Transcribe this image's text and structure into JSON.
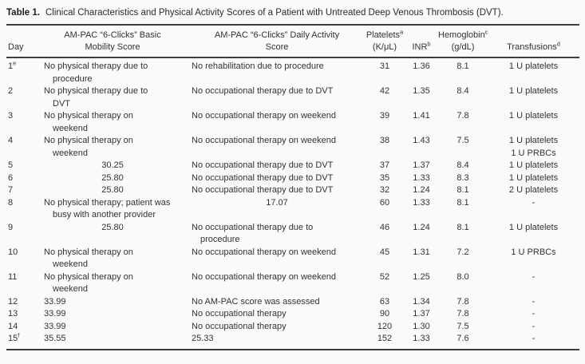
{
  "title": {
    "label": "Table 1.",
    "text": "Clinical Characteristics and Physical Activity Scores of a Patient with Untreated Deep Venous Thrombosis (DVT)."
  },
  "header": {
    "day": "Day",
    "mobility": [
      "AM-PAC “6-Clicks” Basic",
      "Mobility Score"
    ],
    "activity": [
      "AM-PAC “6-Clicks” Daily Activity",
      "Score"
    ],
    "platelets": {
      "main": "Platelets",
      "sup": "a",
      "sub": "(K/μL)"
    },
    "inr": {
      "main": "INR",
      "sup": "b"
    },
    "hgb": {
      "main": "Hemoglobin",
      "sup": "c",
      "sub": "(g/dL)"
    },
    "transfusions": {
      "main": "Transfusions",
      "sup": "d"
    }
  },
  "rows": [
    {
      "day": "1",
      "day_sup": "e",
      "mobility": {
        "lines": [
          "No physical therapy due to",
          "procedure"
        ],
        "align": "left"
      },
      "activity": {
        "lines": [
          "No rehabilitation due to procedure"
        ],
        "align": "left"
      },
      "platelets": "31",
      "inr": "1.36",
      "hgb": "8.1",
      "transfusions": [
        "1 U platelets"
      ]
    },
    {
      "day": "2",
      "day_sup": "",
      "mobility": {
        "lines": [
          "No physical therapy due to",
          "DVT"
        ],
        "align": "left"
      },
      "activity": {
        "lines": [
          "No occupational therapy due to DVT"
        ],
        "align": "left"
      },
      "platelets": "42",
      "inr": "1.35",
      "hgb": "8.4",
      "transfusions": [
        "1 U platelets"
      ]
    },
    {
      "day": "3",
      "day_sup": "",
      "mobility": {
        "lines": [
          "No physical therapy on",
          "weekend"
        ],
        "align": "left"
      },
      "activity": {
        "lines": [
          "No occupational therapy on weekend"
        ],
        "align": "left"
      },
      "platelets": "39",
      "inr": "1.41",
      "hgb": "7.8",
      "transfusions": [
        "1 U platelets"
      ]
    },
    {
      "day": "4",
      "day_sup": "",
      "mobility": {
        "lines": [
          "No physical therapy on",
          "weekend"
        ],
        "align": "left"
      },
      "activity": {
        "lines": [
          "No occupational therapy on weekend"
        ],
        "align": "left"
      },
      "platelets": "38",
      "inr": "1.43",
      "hgb": "7.5",
      "transfusions": [
        "1 U platelets",
        "1 U PRBCs"
      ]
    },
    {
      "day": "5",
      "day_sup": "",
      "mobility": {
        "lines": [
          "30.25"
        ],
        "align": "center"
      },
      "activity": {
        "lines": [
          "No occupational therapy due to DVT"
        ],
        "align": "left"
      },
      "platelets": "37",
      "inr": "1.37",
      "hgb": "8.4",
      "transfusions": [
        "1 U platelets"
      ]
    },
    {
      "day": "6",
      "day_sup": "",
      "mobility": {
        "lines": [
          "25.80"
        ],
        "align": "center"
      },
      "activity": {
        "lines": [
          "No occupational therapy due to DVT"
        ],
        "align": "left"
      },
      "platelets": "35",
      "inr": "1.33",
      "hgb": "8.3",
      "transfusions": [
        "1 U platelets"
      ]
    },
    {
      "day": "7",
      "day_sup": "",
      "mobility": {
        "lines": [
          "25.80"
        ],
        "align": "center"
      },
      "activity": {
        "lines": [
          "No occupational therapy due to DVT"
        ],
        "align": "left"
      },
      "platelets": "32",
      "inr": "1.24",
      "hgb": "8.1",
      "transfusions": [
        "2 U platelets"
      ]
    },
    {
      "day": "8",
      "day_sup": "",
      "mobility": {
        "lines": [
          "No physical therapy; patient was",
          "busy with another provider"
        ],
        "align": "left"
      },
      "activity": {
        "lines": [
          "17.07"
        ],
        "align": "center"
      },
      "platelets": "60",
      "inr": "1.33",
      "hgb": "8.1",
      "transfusions": [
        "-"
      ]
    },
    {
      "day": "9",
      "day_sup": "",
      "mobility": {
        "lines": [
          "25.80"
        ],
        "align": "center"
      },
      "activity": {
        "lines": [
          "No occupational therapy due to",
          "procedure"
        ],
        "align": "left"
      },
      "platelets": "46",
      "inr": "1.24",
      "hgb": "8.1",
      "transfusions": [
        "1 U platelets"
      ]
    },
    {
      "day": "10",
      "day_sup": "",
      "mobility": {
        "lines": [
          "No physical therapy on",
          "weekend"
        ],
        "align": "left"
      },
      "activity": {
        "lines": [
          "No occupational therapy on weekend"
        ],
        "align": "left"
      },
      "platelets": "45",
      "inr": "1.31",
      "hgb": "7.2",
      "transfusions": [
        "1 U PRBCs"
      ]
    },
    {
      "day": "11",
      "day_sup": "",
      "mobility": {
        "lines": [
          "No physical therapy on",
          "weekend"
        ],
        "align": "left"
      },
      "activity": {
        "lines": [
          "No occupational therapy on weekend"
        ],
        "align": "left"
      },
      "platelets": "52",
      "inr": "1.25",
      "hgb": "8.0",
      "transfusions": [
        "-"
      ]
    },
    {
      "day": "12",
      "day_sup": "",
      "mobility": {
        "lines": [
          "33.99"
        ],
        "align": "left"
      },
      "activity": {
        "lines": [
          "No AM-PAC score was assessed"
        ],
        "align": "left"
      },
      "platelets": "63",
      "inr": "1.34",
      "hgb": "7.8",
      "transfusions": [
        "-"
      ]
    },
    {
      "day": "13",
      "day_sup": "",
      "mobility": {
        "lines": [
          "33.99"
        ],
        "align": "left"
      },
      "activity": {
        "lines": [
          "No occupational therapy"
        ],
        "align": "left"
      },
      "platelets": "90",
      "inr": "1.37",
      "hgb": "7.8",
      "transfusions": [
        "-"
      ]
    },
    {
      "day": "14",
      "day_sup": "",
      "mobility": {
        "lines": [
          "33.99"
        ],
        "align": "left"
      },
      "activity": {
        "lines": [
          "No occupational therapy"
        ],
        "align": "left"
      },
      "platelets": "120",
      "inr": "1.30",
      "hgb": "7.5",
      "transfusions": [
        "-"
      ]
    },
    {
      "day": "15",
      "day_sup": "f",
      "mobility": {
        "lines": [
          "35.55"
        ],
        "align": "left"
      },
      "activity": {
        "lines": [
          "25.33"
        ],
        "align": "left"
      },
      "platelets": "152",
      "inr": "1.33",
      "hgb": "7.6",
      "transfusions": [
        "-"
      ]
    }
  ]
}
